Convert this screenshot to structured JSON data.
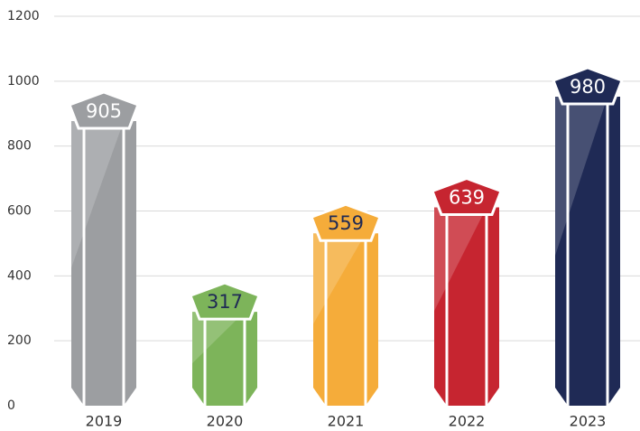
{
  "chart_data": {
    "type": "bar",
    "categories": [
      "2019",
      "2020",
      "2021",
      "2022",
      "2023"
    ],
    "values": [
      905,
      317,
      559,
      639,
      980
    ],
    "colors": [
      "#9c9ea1",
      "#7db45a",
      "#f5ac3a",
      "#c62530",
      "#1f2a55"
    ],
    "label_colors": [
      "#ffffff",
      "#1f2a55",
      "#1f2a55",
      "#ffffff",
      "#ffffff"
    ],
    "ylim": [
      0,
      1200
    ],
    "yticks": [
      0,
      200,
      400,
      600,
      800,
      1000,
      1200
    ],
    "grid": true
  }
}
